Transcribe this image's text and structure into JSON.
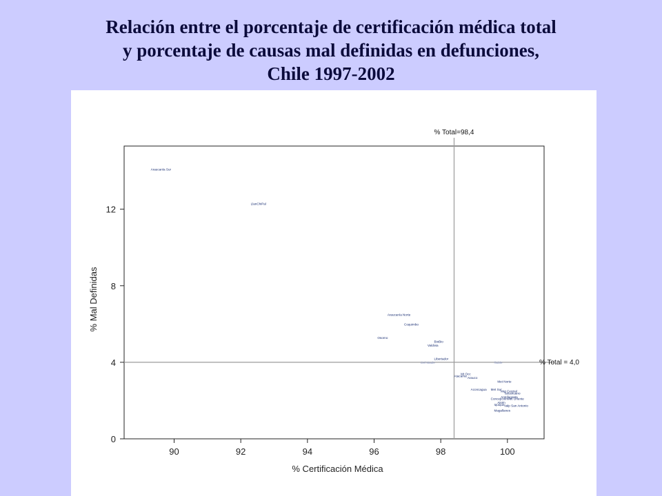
{
  "title_lines": [
    "Relación entre el porcentaje de certificación médica total",
    "y porcentaje de causas mal definidas en defunciones,",
    "Chile 1997-2002"
  ],
  "colors": {
    "background": "#ccccff",
    "title": "#0b0b3b",
    "points": "#1a2f73",
    "reference_lines": "#9a9a9a"
  },
  "chart_data": {
    "type": "scatter",
    "title": "",
    "xlabel": "% Certificación Médica",
    "ylabel": "% Mal Definidas",
    "xlim": [
      88.5,
      101.1
    ],
    "ylim": [
      0,
      15.3
    ],
    "xticks": [
      90,
      92,
      94,
      96,
      98,
      100
    ],
    "yticks": [
      0,
      4,
      8,
      12
    ],
    "grid": false,
    "reference_lines": [
      {
        "axis": "x",
        "value": 98.4,
        "label": "% Total=98,4"
      },
      {
        "axis": "y",
        "value": 4.0,
        "label": "% Total = 4,0"
      }
    ],
    "points": [
      {
        "label": "Araucanía Sur",
        "x": 89.3,
        "y": 14.1
      },
      {
        "label": "LlanChiPal",
        "x": 92.3,
        "y": 12.3
      },
      {
        "label": "Araucanía Norte",
        "x": 96.4,
        "y": 6.5
      },
      {
        "label": "Coquimbo",
        "x": 96.9,
        "y": 6.0
      },
      {
        "label": "Osorno",
        "x": 96.1,
        "y": 5.3
      },
      {
        "label": "BioBio",
        "x": 97.8,
        "y": 5.1
      },
      {
        "label": "Valdivia",
        "x": 97.6,
        "y": 4.9
      },
      {
        "label": "Libertador",
        "x": 97.8,
        "y": 4.2
      },
      {
        "label": "Del Maule",
        "x": 97.4,
        "y": 4.0,
        "faint": true
      },
      {
        "label": "Ñuble",
        "x": 99.6,
        "y": 4.0,
        "faint": true
      },
      {
        "label": "Mt Occ",
        "x": 98.6,
        "y": 3.4
      },
      {
        "label": "Atacama",
        "x": 98.4,
        "y": 3.3
      },
      {
        "label": "Arauco",
        "x": 98.8,
        "y": 3.2
      },
      {
        "label": "Met Norte",
        "x": 99.7,
        "y": 3.0
      },
      {
        "label": "Aconcagua",
        "x": 98.9,
        "y": 2.6
      },
      {
        "label": "Met Sur",
        "x": 99.5,
        "y": 2.6
      },
      {
        "label": "Met Central",
        "x": 99.8,
        "y": 2.5
      },
      {
        "label": "Talcahuano",
        "x": 99.9,
        "y": 2.4
      },
      {
        "label": "Antofagasta",
        "x": 99.8,
        "y": 2.2
      },
      {
        "label": "Concepción",
        "x": 99.5,
        "y": 2.1
      },
      {
        "label": "Met Oriente",
        "x": 100.0,
        "y": 2.1
      },
      {
        "label": "Aisén",
        "x": 99.7,
        "y": 1.9
      },
      {
        "label": "Iquique",
        "x": 99.6,
        "y": 1.8
      },
      {
        "label": "Valp San Antonio",
        "x": 99.9,
        "y": 1.75
      },
      {
        "label": "Magallanes",
        "x": 99.6,
        "y": 1.5
      }
    ]
  }
}
